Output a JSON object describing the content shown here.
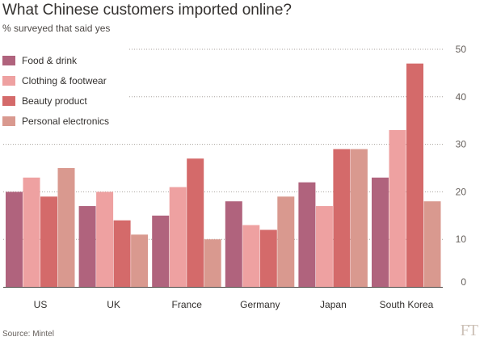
{
  "title": "What Chinese customers imported online?",
  "subtitle": "% surveyed that said yes",
  "source": "Source: Mintel",
  "logo": "FT",
  "chart_data": {
    "type": "bar",
    "title": "What Chinese customers imported online?",
    "subtitle": "% surveyed that said yes",
    "xlabel": "",
    "ylabel": "",
    "ylim": [
      0,
      50
    ],
    "yticks": [
      0,
      10,
      20,
      30,
      40,
      50
    ],
    "grid": true,
    "legend_position": "top-left",
    "categories": [
      "US",
      "UK",
      "France",
      "Germany",
      "Japan",
      "South Korea"
    ],
    "series": [
      {
        "name": "Food & drink",
        "color": "#b0637d",
        "values": [
          20,
          17,
          15,
          18,
          22,
          23
        ]
      },
      {
        "name": "Clothing & footwear",
        "color": "#eea1a1",
        "values": [
          23,
          20,
          21,
          13,
          17,
          33
        ]
      },
      {
        "name": "Beauty product",
        "color": "#d46a6a",
        "values": [
          19,
          14,
          27,
          12,
          29,
          47
        ]
      },
      {
        "name": "Personal electronics",
        "color": "#d9998f",
        "values": [
          25,
          11,
          10,
          19,
          29,
          18
        ]
      }
    ]
  }
}
